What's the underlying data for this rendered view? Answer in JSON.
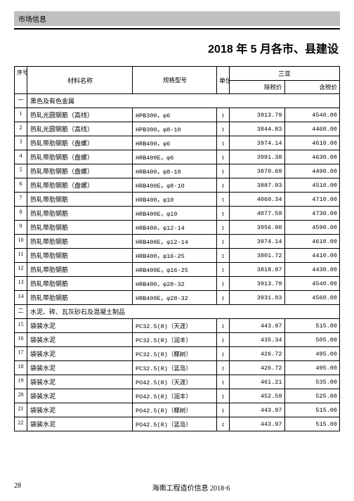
{
  "header_label": "市场信息",
  "page_title": "2018 年 5 月各市、县建设",
  "table": {
    "head": {
      "idx": "序号",
      "name": "材料名称",
      "spec": "规格型号",
      "unit": "单位",
      "region": "三亚",
      "p1": "除税价",
      "p2": "含税价"
    },
    "rows": [
      {
        "type": "section",
        "idx": "一",
        "name": "黑色及有色金属"
      },
      {
        "idx": "1",
        "name": "热轧光圆钢筋（高线）",
        "spec": "HPB300，φ6",
        "unit": "t",
        "p1": "3913.79",
        "p2": "4540.00"
      },
      {
        "idx": "2",
        "name": "热轧光圆钢筋（高线）",
        "spec": "HPB300，φ8-10",
        "unit": "t",
        "p1": "3844.83",
        "p2": "4460.00"
      },
      {
        "idx": "3",
        "name": "热轧带肋钢筋（盘螺）",
        "spec": "HRB400，φ6",
        "unit": "t",
        "p1": "3974.14",
        "p2": "4610.00"
      },
      {
        "idx": "4",
        "name": "热轧带肋钢筋（盘螺）",
        "spec": "HRB400E，φ6",
        "unit": "t",
        "p1": "3991.38",
        "p2": "4630.00"
      },
      {
        "idx": "5",
        "name": "热轧带肋钢筋（盘螺）",
        "spec": "HRB400，φ8-10",
        "unit": "t",
        "p1": "3870.69",
        "p2": "4490.00"
      },
      {
        "idx": "6",
        "name": "热轧带肋钢筋（盘螺）",
        "spec": "HRB400E，φ8-10",
        "unit": "t",
        "p1": "3887.93",
        "p2": "4510.00"
      },
      {
        "idx": "7",
        "name": "热轧带肋钢筋",
        "spec": "HRB400，φ10",
        "unit": "t",
        "p1": "4060.34",
        "p2": "4710.00"
      },
      {
        "idx": "8",
        "name": "热轧带肋钢筋",
        "spec": "HRB400E，φ10",
        "unit": "t",
        "p1": "4077.59",
        "p2": "4730.00"
      },
      {
        "idx": "9",
        "name": "热轧带肋钢筋",
        "spec": "HRB400，φ12-14",
        "unit": "t",
        "p1": "3956.90",
        "p2": "4590.00"
      },
      {
        "idx": "10",
        "name": "热轧带肋钢筋",
        "spec": "HRB400E，φ12-14",
        "unit": "t",
        "p1": "3974.14",
        "p2": "4610.00"
      },
      {
        "idx": "11",
        "name": "热轧带肋钢筋",
        "spec": "HRB400，φ16-25",
        "unit": "t",
        "p1": "3801.72",
        "p2": "4410.00"
      },
      {
        "idx": "12",
        "name": "热轧带肋钢筋",
        "spec": "HRB400E，φ16-25",
        "unit": "t",
        "p1": "3818.97",
        "p2": "4430.00"
      },
      {
        "idx": "13",
        "name": "热轧带肋钢筋",
        "spec": "HRB400，φ28-32",
        "unit": "t",
        "p1": "3913.79",
        "p2": "4540.00"
      },
      {
        "idx": "14",
        "name": "热轧带肋钢筋",
        "spec": "HRB400E，φ28-32",
        "unit": "t",
        "p1": "3931.03",
        "p2": "4560.00"
      },
      {
        "type": "section",
        "idx": "二",
        "name": "水泥、砖、瓦灰砂石及混凝土制品"
      },
      {
        "idx": "15",
        "name": "袋装水泥",
        "spec": "PC32.5(R)（天涯）",
        "unit": "t",
        "p1": "443.97",
        "p2": "515.00"
      },
      {
        "idx": "16",
        "name": "袋装水泥",
        "spec": "PC32.5(R)（润丰）",
        "unit": "t",
        "p1": "435.34",
        "p2": "505.00"
      },
      {
        "idx": "17",
        "name": "袋装水泥",
        "spec": "PC32.5(R)（椰树）",
        "unit": "t",
        "p1": "426.72",
        "p2": "495.00"
      },
      {
        "idx": "18",
        "name": "袋装水泥",
        "spec": "PC32.5(R)（蓝岛）",
        "unit": "t",
        "p1": "426.72",
        "p2": "495.00"
      },
      {
        "idx": "19",
        "name": "袋装水泥",
        "spec": "PO42.5(R)（天涯）",
        "unit": "t",
        "p1": "461.21",
        "p2": "535.00"
      },
      {
        "idx": "20",
        "name": "袋装水泥",
        "spec": "PO42.5(R)（润丰）",
        "unit": "t",
        "p1": "452.59",
        "p2": "525.00"
      },
      {
        "idx": "21",
        "name": "袋装水泥",
        "spec": "PO42.5(R)（椰树）",
        "unit": "t",
        "p1": "443.97",
        "p2": "515.00"
      },
      {
        "idx": "22",
        "name": "袋装水泥",
        "spec": "PO42.5(R)（蓝岛）",
        "unit": "t",
        "p1": "443.97",
        "p2": "515.00"
      }
    ]
  },
  "footer": {
    "page": "28",
    "source": "海南工程造价信息 2018·6"
  }
}
